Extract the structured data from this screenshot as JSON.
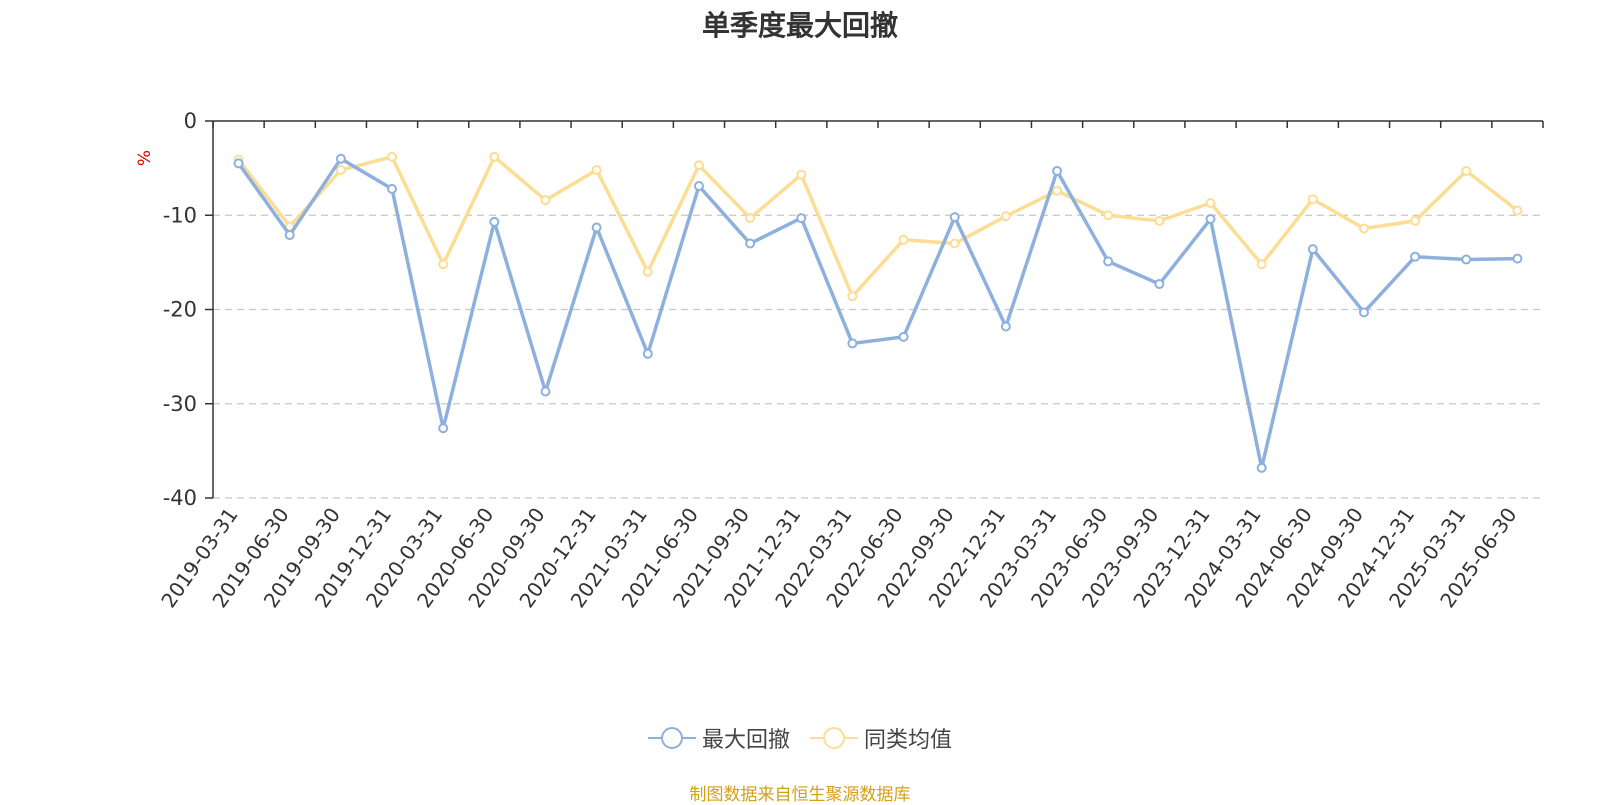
{
  "title": "单季度最大回撤",
  "footer": "制图数据来自恒生聚源数据库",
  "chart_data": {
    "type": "line",
    "title": "单季度最大回撤",
    "ylabel": "%",
    "xlabel": "",
    "ylim": [
      -40,
      0
    ],
    "yticks": [
      0,
      -10,
      -20,
      -30,
      -40
    ],
    "grid": true,
    "legend_position": "bottom",
    "categories": [
      "2019-03-31",
      "2019-06-30",
      "2019-09-30",
      "2019-12-31",
      "2020-03-31",
      "2020-06-30",
      "2020-09-30",
      "2020-12-31",
      "2021-03-31",
      "2021-06-30",
      "2021-09-30",
      "2021-12-31",
      "2022-03-31",
      "2022-06-30",
      "2022-09-30",
      "2022-12-31",
      "2023-03-31",
      "2023-06-30",
      "2023-09-30",
      "2023-12-31",
      "2024-03-31",
      "2024-06-30",
      "2024-09-30",
      "2024-12-31",
      "2025-03-31",
      "2025-06-30"
    ],
    "series": [
      {
        "name": "最大回撤",
        "color": "#8eb0dc",
        "values": [
          -4.5,
          -12.1,
          -4.0,
          -7.2,
          -32.6,
          -10.7,
          -28.7,
          -11.3,
          -24.7,
          -6.9,
          -13.0,
          -10.3,
          -23.6,
          -22.9,
          -10.2,
          -21.8,
          -5.3,
          -14.9,
          -17.3,
          -10.4,
          -36.8,
          -13.6,
          -20.3,
          -14.4,
          -14.7,
          -14.6
        ]
      },
      {
        "name": "同类均值",
        "color": "#fddc94",
        "values": [
          -4.1,
          -11.2,
          -5.2,
          -3.8,
          -15.2,
          -3.8,
          -8.4,
          -5.2,
          -16.0,
          -4.7,
          -10.3,
          -5.7,
          -18.6,
          -12.6,
          -13.0,
          -10.1,
          -7.4,
          -10.0,
          -10.6,
          -8.7,
          -15.2,
          -8.3,
          -11.4,
          -10.6,
          -5.3,
          -9.5
        ]
      }
    ]
  }
}
